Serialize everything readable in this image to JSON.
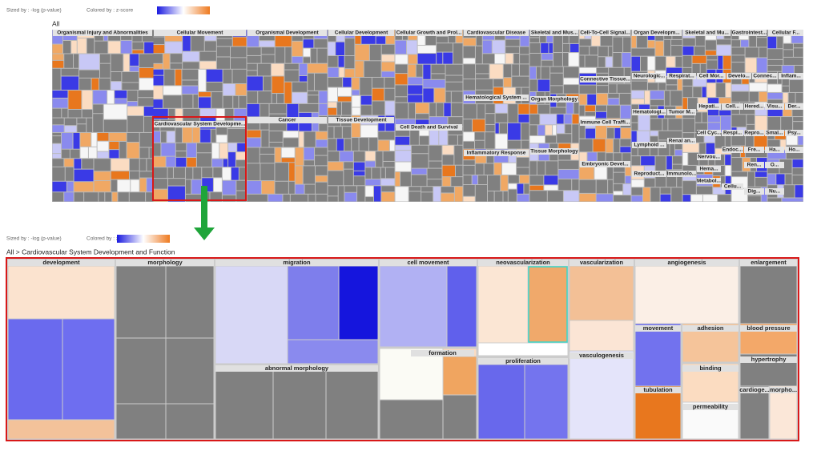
{
  "top": {
    "legend": {
      "sized_by": "Sized by : -log (p-value)",
      "colored_by": "Colored by : z-score"
    },
    "breadcrumb": "All",
    "groups": [
      "Organismal Injury and Abnormalities",
      "Cellular Movement",
      "Organismal Development",
      "Cellular Development",
      "Cellular Growth and Prol...",
      "Cardiovascular Disease",
      "Skeletal and Mus...",
      "Cell-To-Cell Signal...",
      "Organ Developm...",
      "Skeletal and Mu...",
      "Gastrointest...",
      "Cellular F...",
      "Cardiovascular System Developme...",
      "Cancer",
      "Tissue Development",
      "Cell Death and Survival",
      "Hematological System ...",
      "Organ Morphology",
      "Inflammatory Response",
      "Tissue Morphology",
      "Connective Tissue...",
      "Immune Cell Traffi...",
      "Embryonic Devel...",
      "Neurologic...",
      "Respirat...",
      "Cell Mor...",
      "Develo...",
      "Connec...",
      "Inflam...",
      "Hematologi...",
      "Tumor M...",
      "Hepati...",
      "Cell...",
      "Hered...",
      "Visu...",
      "Der...",
      "Lymphoid ...",
      "Renal an...",
      "Cell Cyc...",
      "Respi...",
      "Repro...",
      "Smal...",
      "Psy...",
      "Reproduct...",
      "Immunolo...",
      "Nervou...",
      "Endoc...",
      "Fre...",
      "Ha...",
      "Ho...",
      "Hema...",
      "Ren...",
      "O...",
      "Metabol...",
      "Cellu...",
      "Dig...",
      "Nu..."
    ]
  },
  "bottom": {
    "legend": {
      "sized_by": "Sized by : -log (p-value)",
      "colored_by": "Colored by : z-score"
    },
    "breadcrumb": "All > Cardiovascular System Development and Function",
    "groups": [
      "development",
      "morphology",
      "migration",
      "cell movement",
      "neovascularization",
      "vascularization",
      "angiogenesis",
      "enlargement",
      "abnormal morphology",
      "formation",
      "proliferation",
      "vasculogenesis",
      "movement",
      "adhesion",
      "blood pressure",
      "binding",
      "hypertrophy",
      "tubulation",
      "permeability",
      "cardioge...",
      "morpho..."
    ]
  }
}
